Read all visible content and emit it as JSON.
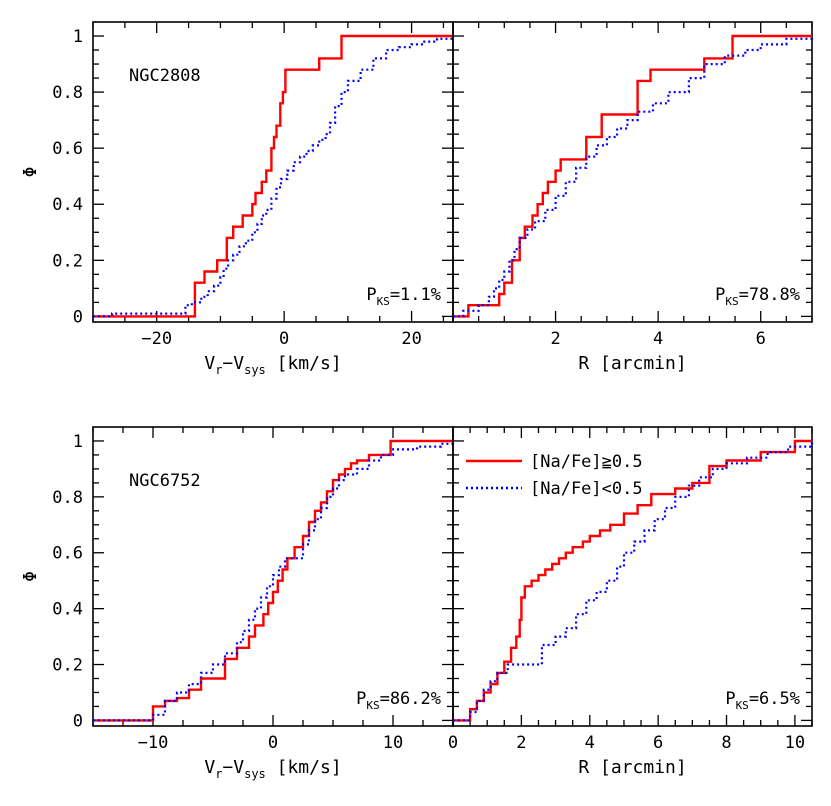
{
  "colors": {
    "na_rich": "#ff0000",
    "na_poor": "#0000ff",
    "axes": "#000000"
  },
  "legend": {
    "placement": "top-left of lower-right panel",
    "entries": [
      {
        "label": "[Na/Fe]≧0.5",
        "color": "#ff0000",
        "style": "solid"
      },
      {
        "label": "[Na/Fe]<0.5",
        "color": "#0000ff",
        "style": "dotted"
      }
    ]
  },
  "chart_data": [
    {
      "type": "line",
      "panel": "top-left",
      "cluster": "NGC2808",
      "xlabel": "V_r−V_sys [km/s]",
      "xlabel_main": "V",
      "xlabel_sub1": "r",
      "xlabel_mid": "−V",
      "xlabel_sub2": "sys",
      "xlabel_tail": " [km/s]",
      "ylabel": "Φ",
      "xlim": [
        -30,
        26.5
      ],
      "ylim": [
        -0.02,
        1.05
      ],
      "xticks": [
        -20,
        0,
        20
      ],
      "xtick_labels": [
        "−20",
        "0",
        "20"
      ],
      "yticks": [
        0,
        0.2,
        0.4,
        0.6,
        0.8,
        1
      ],
      "ytick_labels": [
        "0",
        "0.2",
        "0.4",
        "0.6",
        "0.8",
        "1"
      ],
      "pks_main": "P",
      "pks_sub": "KS",
      "pks_value": "=1.1%",
      "series": [
        {
          "name": "[Na/Fe]≧0.5",
          "style": "solid",
          "step": true,
          "x": [
            -30,
            -15,
            -14,
            -12.5,
            -10.5,
            -9,
            -8,
            -6.5,
            -5,
            -4.5,
            -3.5,
            -2.8,
            -2,
            -1.6,
            -1.2,
            -0.6,
            -0.2,
            0.2,
            5.5,
            9,
            26.5
          ],
          "y": [
            0,
            0,
            0.12,
            0.16,
            0.2,
            0.28,
            0.32,
            0.36,
            0.4,
            0.44,
            0.48,
            0.52,
            0.6,
            0.64,
            0.68,
            0.76,
            0.8,
            0.88,
            0.92,
            1.0,
            1.0
          ]
        },
        {
          "name": "[Na/Fe]<0.5",
          "style": "dotted",
          "step": true,
          "x": [
            -30,
            -27,
            -15.5,
            -14.5,
            -13,
            -12,
            -11,
            -10,
            -9.5,
            -8.8,
            -8,
            -7,
            -6,
            -5,
            -4.2,
            -3.5,
            -2.8,
            -2,
            -1.2,
            -0.5,
            0.5,
            1.5,
            2.5,
            3.5,
            4.5,
            5.5,
            6.5,
            7.2,
            8,
            9,
            10,
            12,
            14,
            16,
            18,
            20,
            22,
            24,
            26.5
          ],
          "y": [
            0,
            0.01,
            0.04,
            0.05,
            0.07,
            0.09,
            0.11,
            0.14,
            0.17,
            0.2,
            0.22,
            0.25,
            0.27,
            0.3,
            0.33,
            0.36,
            0.38,
            0.42,
            0.46,
            0.49,
            0.52,
            0.55,
            0.57,
            0.59,
            0.61,
            0.63,
            0.65,
            0.69,
            0.75,
            0.8,
            0.84,
            0.88,
            0.92,
            0.95,
            0.96,
            0.97,
            0.98,
            0.99,
            1.0
          ]
        }
      ]
    },
    {
      "type": "line",
      "panel": "top-right",
      "cluster": "",
      "xlabel": "R [arcmin]",
      "xlabel_main": "R [arcmin]",
      "xlim": [
        0,
        7
      ],
      "ylim": [
        -0.02,
        1.05
      ],
      "xticks": [
        2,
        4,
        6
      ],
      "xtick_labels": [
        "2",
        "4",
        "6"
      ],
      "pks_main": "P",
      "pks_sub": "KS",
      "pks_value": "=78.8%",
      "series": [
        {
          "name": "[Na/Fe]≧0.5",
          "style": "solid",
          "step": true,
          "x": [
            0,
            0.3,
            0.6,
            0.9,
            1.0,
            1.15,
            1.3,
            1.4,
            1.55,
            1.65,
            1.75,
            1.85,
            2.0,
            2.1,
            2.2,
            2.6,
            2.75,
            2.9,
            3.25,
            3.6,
            3.85,
            4.5,
            4.9,
            5.45,
            7.0
          ],
          "y": [
            0,
            0.04,
            0.04,
            0.08,
            0.12,
            0.2,
            0.28,
            0.32,
            0.36,
            0.4,
            0.44,
            0.48,
            0.52,
            0.56,
            0.56,
            0.64,
            0.64,
            0.72,
            0.72,
            0.84,
            0.88,
            0.88,
            0.92,
            1.0,
            1.0
          ]
        },
        {
          "name": "[Na/Fe]<0.5",
          "style": "dotted",
          "step": true,
          "x": [
            0,
            0.2,
            0.5,
            0.7,
            0.8,
            0.9,
            1.0,
            1.1,
            1.2,
            1.3,
            1.45,
            1.6,
            1.8,
            2.0,
            2.2,
            2.4,
            2.6,
            2.8,
            3.0,
            3.2,
            3.4,
            3.6,
            3.9,
            4.2,
            4.6,
            4.9,
            5.3,
            5.7,
            6.0,
            6.5,
            7.0
          ],
          "y": [
            0,
            0.02,
            0.04,
            0.07,
            0.1,
            0.13,
            0.16,
            0.2,
            0.24,
            0.28,
            0.31,
            0.34,
            0.38,
            0.43,
            0.48,
            0.53,
            0.57,
            0.61,
            0.64,
            0.67,
            0.7,
            0.73,
            0.76,
            0.8,
            0.85,
            0.9,
            0.93,
            0.95,
            0.97,
            0.99,
            1.0
          ]
        }
      ]
    },
    {
      "type": "line",
      "panel": "bottom-left",
      "cluster": "NGC6752",
      "xlabel": "V_r−V_sys [km/s]",
      "xlabel_main": "V",
      "xlabel_sub1": "r",
      "xlabel_mid": "−V",
      "xlabel_sub2": "sys",
      "xlabel_tail": " [km/s]",
      "ylabel": "Φ",
      "xlim": [
        -15,
        15
      ],
      "ylim": [
        -0.02,
        1.05
      ],
      "xticks": [
        -10,
        0,
        10
      ],
      "xtick_labels": [
        "−10",
        "0",
        "10"
      ],
      "yticks": [
        0,
        0.2,
        0.4,
        0.6,
        0.8,
        1
      ],
      "ytick_labels": [
        "0",
        "0.2",
        "0.4",
        "0.6",
        "0.8",
        "1"
      ],
      "pks_main": "P",
      "pks_sub": "KS",
      "pks_value": "=86.2%",
      "series": [
        {
          "name": "[Na/Fe]≧0.5",
          "style": "solid",
          "step": true,
          "x": [
            -15,
            -10,
            -9,
            -8,
            -7,
            -6,
            -5,
            -4,
            -3,
            -2,
            -1.5,
            -0.8,
            -0.4,
            0,
            0.4,
            0.8,
            1.2,
            1.8,
            2.5,
            3.0,
            3.5,
            4.0,
            4.5,
            5.0,
            5.5,
            6.0,
            6.5,
            7.0,
            8.0,
            9.8,
            15
          ],
          "y": [
            0,
            0.05,
            0.07,
            0.08,
            0.11,
            0.15,
            0.15,
            0.22,
            0.26,
            0.3,
            0.34,
            0.38,
            0.42,
            0.46,
            0.5,
            0.54,
            0.58,
            0.62,
            0.66,
            0.71,
            0.75,
            0.78,
            0.82,
            0.86,
            0.88,
            0.9,
            0.92,
            0.93,
            0.95,
            1.0,
            1.0
          ]
        },
        {
          "name": "[Na/Fe]<0.5",
          "style": "dotted",
          "step": true,
          "x": [
            -15,
            -10,
            -9,
            -8,
            -7,
            -6,
            -5,
            -4,
            -3,
            -2.5,
            -2,
            -1.5,
            -1,
            -0.5,
            0,
            0.5,
            1,
            1.5,
            2,
            2.5,
            3,
            3.5,
            4,
            4.5,
            5,
            5.5,
            6,
            7,
            8,
            9,
            10,
            12,
            14,
            15
          ],
          "y": [
            0,
            0.02,
            0.07,
            0.1,
            0.13,
            0.17,
            0.2,
            0.24,
            0.28,
            0.32,
            0.36,
            0.4,
            0.44,
            0.48,
            0.52,
            0.55,
            0.58,
            0.58,
            0.58,
            0.63,
            0.68,
            0.72,
            0.76,
            0.8,
            0.83,
            0.86,
            0.88,
            0.9,
            0.93,
            0.95,
            0.97,
            0.98,
            0.99,
            1.0
          ]
        }
      ]
    },
    {
      "type": "line",
      "panel": "bottom-right",
      "cluster": "",
      "xlabel": "R [arcmin]",
      "xlabel_main": "R [arcmin]",
      "xlim": [
        0,
        10.5
      ],
      "ylim": [
        -0.02,
        1.05
      ],
      "xticks": [
        0,
        2,
        4,
        6,
        8,
        10
      ],
      "xtick_labels": [
        "0",
        "2",
        "4",
        "6",
        "8",
        "10"
      ],
      "pks_main": "P",
      "pks_sub": "KS",
      "pks_value": "=6.5%",
      "series": [
        {
          "name": "[Na/Fe]≧0.5",
          "style": "solid",
          "step": true,
          "x": [
            0,
            0.5,
            0.7,
            0.9,
            1.1,
            1.3,
            1.5,
            1.7,
            1.85,
            1.95,
            2.0,
            2.1,
            2.3,
            2.5,
            2.7,
            2.9,
            3.1,
            3.3,
            3.5,
            3.8,
            4.0,
            4.3,
            4.6,
            5.0,
            5.4,
            5.8,
            6.5,
            7.0,
            7.5,
            8.0,
            9.0,
            10.0,
            10.5
          ],
          "y": [
            0,
            0.04,
            0.07,
            0.1,
            0.13,
            0.17,
            0.21,
            0.26,
            0.3,
            0.36,
            0.44,
            0.48,
            0.5,
            0.52,
            0.54,
            0.56,
            0.58,
            0.6,
            0.62,
            0.64,
            0.66,
            0.68,
            0.7,
            0.74,
            0.77,
            0.81,
            0.83,
            0.85,
            0.91,
            0.93,
            0.96,
            1.0,
            1.0
          ]
        },
        {
          "name": "[Na/Fe]<0.5",
          "style": "dotted",
          "step": true,
          "x": [
            0,
            0.5,
            0.7,
            0.9,
            1.1,
            1.3,
            1.6,
            2.2,
            2.6,
            3.0,
            3.3,
            3.6,
            3.9,
            4.2,
            4.5,
            4.8,
            5.0,
            5.3,
            5.6,
            5.9,
            6.2,
            6.5,
            6.9,
            7.2,
            7.6,
            8.0,
            8.6,
            9.2,
            9.8,
            10.5
          ],
          "y": [
            0,
            0.03,
            0.07,
            0.11,
            0.14,
            0.17,
            0.2,
            0.2,
            0.27,
            0.3,
            0.33,
            0.38,
            0.43,
            0.46,
            0.5,
            0.55,
            0.6,
            0.64,
            0.68,
            0.72,
            0.76,
            0.8,
            0.84,
            0.87,
            0.9,
            0.92,
            0.94,
            0.96,
            0.98,
            1.0
          ]
        }
      ]
    }
  ]
}
